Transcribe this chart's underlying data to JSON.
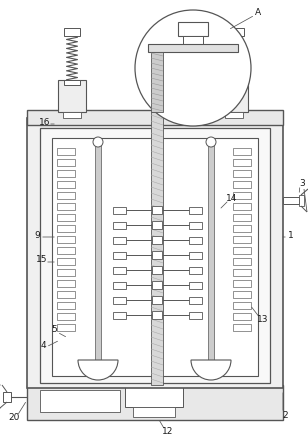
{
  "bg_color": "#ffffff",
  "lc": "#555555",
  "lw": 0.7,
  "fig_w": 3.08,
  "fig_h": 4.43,
  "dpi": 100
}
